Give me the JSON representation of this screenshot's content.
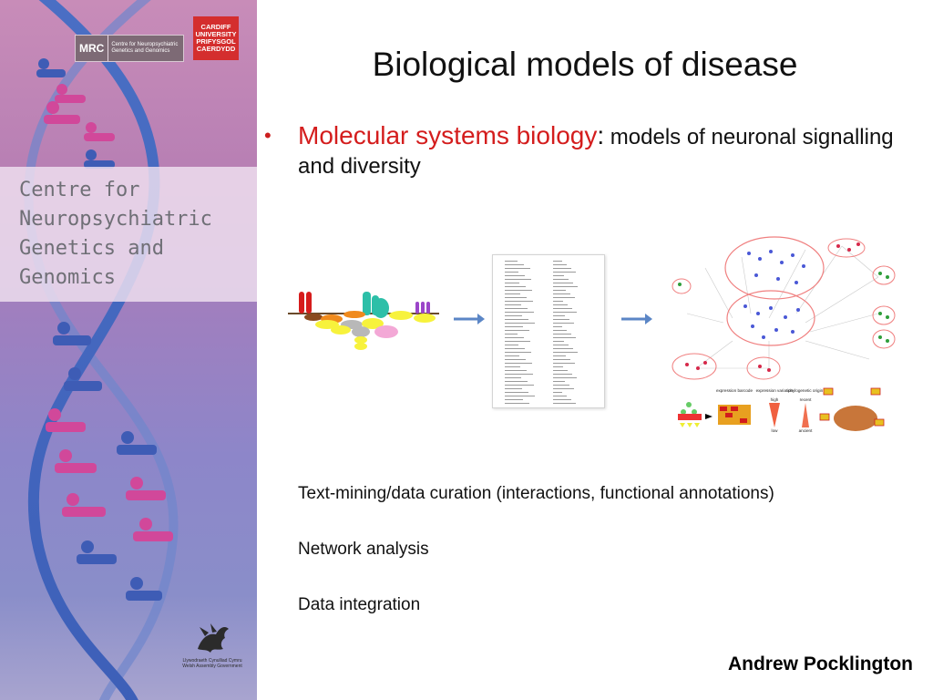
{
  "sidebar": {
    "mrc_logo": {
      "mark": "MRC",
      "text": "Centre for Neuropsychiatric Genetics and Genomics"
    },
    "cardiff_logo": {
      "line1": "CARDIFF",
      "line2": "UNIVERSITY",
      "line3": "PRIFYSGOL",
      "line4": "CAERDYDD"
    },
    "centre_name": "Centre for\nNeuropsychiatric\nGenetics and\nGenomics",
    "welsh_gov": {
      "line1": "Llywodraeth Cynulliad Cymru",
      "line2": "Welsh Assembly Government"
    }
  },
  "slide": {
    "title": "Biological models of disease",
    "bullet": {
      "highlight": "Molecular systems biology",
      "colon": ":",
      "rest": " models of neuronal signalling and diversity"
    },
    "network_labels": {
      "expression_barcode": "expression barcode",
      "expression_variation": "expression variation",
      "phylogenetic_origin": "phylogenetic origin",
      "high": "high",
      "low": "low",
      "recent": "recent",
      "ancient": "ancient"
    },
    "notes": [
      "Text-mining/data curation (interactions, functional annotations)",
      "Network analysis",
      "Data integration"
    ],
    "author": "Andrew Pocklington"
  },
  "colors": {
    "accent_red": "#d41d1d",
    "arrow_blue": "#5b86c6",
    "sidebar_pink": "#c88cb8",
    "sidebar_blue": "#8a8ec9"
  }
}
